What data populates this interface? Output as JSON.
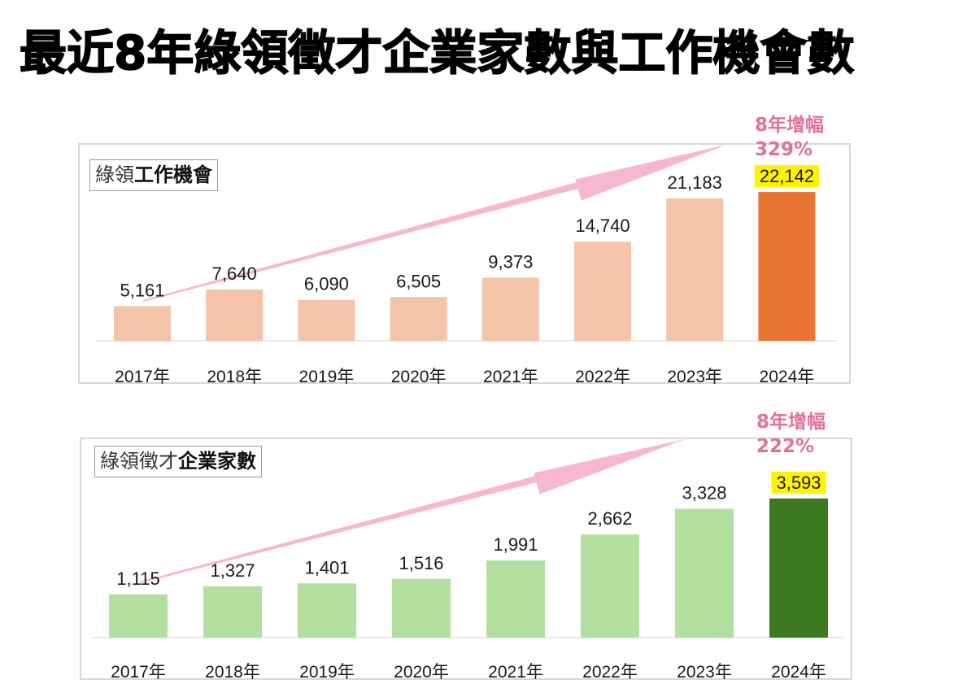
{
  "page": {
    "title": "最近8年綠領徵才企業家數與工作機會數"
  },
  "chart_data": [
    {
      "type": "bar",
      "title": "綠領工作機會",
      "title_parts": {
        "light": "綠領",
        "bold": "工作機會"
      },
      "categories": [
        "2017年",
        "2018年",
        "2019年",
        "2020年",
        "2021年",
        "2022年",
        "2023年",
        "2024年"
      ],
      "values": [
        5161,
        7640,
        6090,
        6505,
        9373,
        14740,
        21183,
        22142
      ],
      "value_labels": [
        "5,161",
        "7,640",
        "6,090",
        "6,505",
        "9,373",
        "14,740",
        "21,183",
        "22,142"
      ],
      "highlight_index": 7,
      "colors": {
        "bar": "#f4c4a8",
        "highlight": "#e87432",
        "label_highlight_bg": "#fff200",
        "arrow": "#f7b6d2",
        "growth_text": "#e0719d"
      },
      "annotation": {
        "line1": "8年增幅",
        "line2": "329%"
      },
      "xlabel": "",
      "ylabel": "",
      "ylim": [
        0,
        23000
      ],
      "grid": false,
      "legend": "none"
    },
    {
      "type": "bar",
      "title": "綠領徵才企業家數",
      "title_parts": {
        "light": "綠領徵才",
        "bold": "企業家數"
      },
      "categories": [
        "2017年",
        "2018年",
        "2019年",
        "2020年",
        "2021年",
        "2022年",
        "2023年",
        "2024年"
      ],
      "values": [
        1115,
        1327,
        1401,
        1516,
        1991,
        2662,
        3328,
        3593
      ],
      "value_labels": [
        "1,115",
        "1,327",
        "1,401",
        "1,516",
        "1,991",
        "2,662",
        "3,328",
        "3,593"
      ],
      "highlight_index": 7,
      "colors": {
        "bar": "#b3e09e",
        "highlight": "#3c7a22",
        "label_highlight_bg": "#fff200",
        "arrow": "#f7b6d2",
        "growth_text": "#e0719d"
      },
      "annotation": {
        "line1": "8年增幅",
        "line2": "222%"
      },
      "xlabel": "",
      "ylabel": "",
      "ylim": [
        0,
        4200
      ],
      "grid": false,
      "legend": "none"
    }
  ]
}
